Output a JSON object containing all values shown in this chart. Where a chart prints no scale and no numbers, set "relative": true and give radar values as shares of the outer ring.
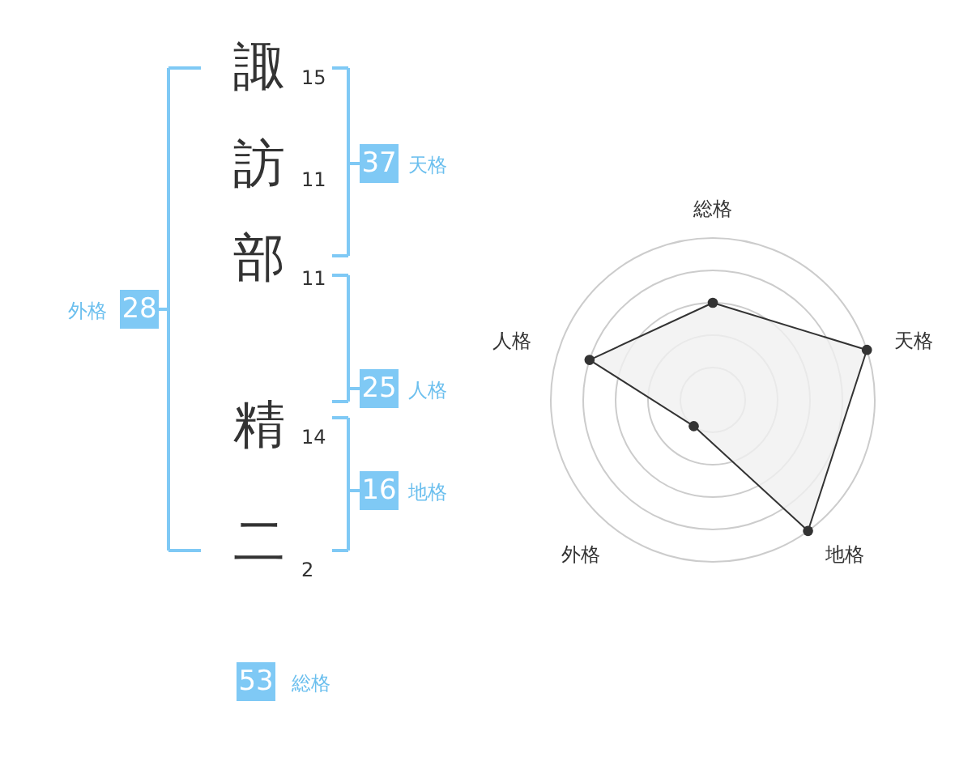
{
  "chart_data": {
    "type": "radar",
    "relative": true,
    "grid": true,
    "marker": "circle",
    "categories": [
      "総格",
      "天格",
      "地格",
      "外格",
      "人格"
    ],
    "series": [
      {
        "color": "#333333",
        "values": [
          0.6,
          1,
          1,
          0.2,
          0.8
        ]
      }
    ],
    "annotations": [
      "諏",
      "訪",
      "部",
      "精",
      "二",
      "15",
      "11",
      "11",
      "14",
      "2",
      "28",
      "外格",
      "37",
      "天格",
      "25",
      "人格",
      "16",
      "地格",
      "53",
      "総格"
    ]
  }
}
